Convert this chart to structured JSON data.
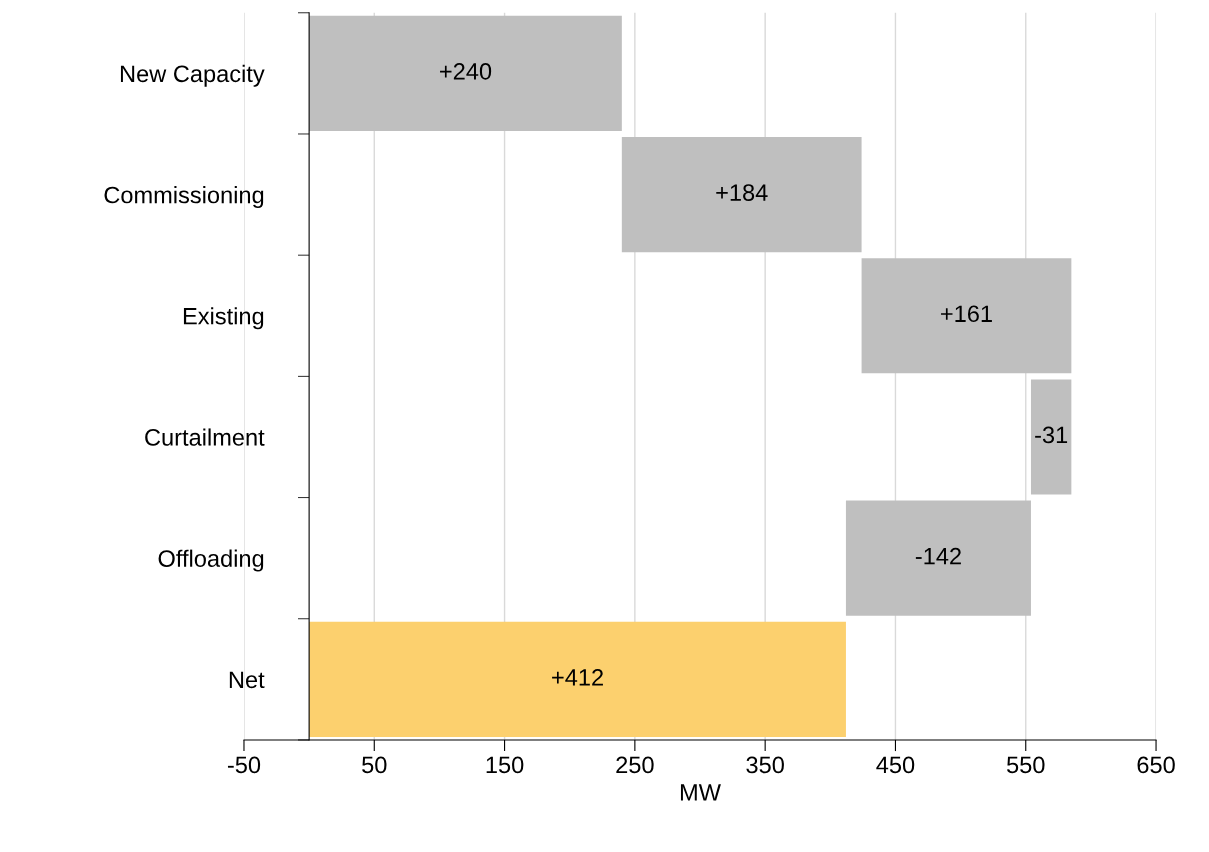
{
  "chart_data": {
    "type": "bar",
    "orientation": "horizontal",
    "xlabel": "MW",
    "categories": [
      "New Capacity",
      "Commissioning",
      "Existing",
      "Curtailment",
      "Offloading",
      "Net"
    ],
    "values": [
      240,
      184,
      161,
      -31,
      -142,
      412
    ],
    "base": [
      0,
      240,
      424,
      585,
      554,
      0
    ],
    "colors": [
      "#bfbfbf",
      "#bfbfbf",
      "#bfbfbf",
      "#bfbfbf",
      "#bfbfbf",
      "#fcd06e"
    ],
    "value_labels": [
      "+240",
      "+184",
      "+161",
      "-31",
      "-142",
      "+412"
    ],
    "xlim": [
      -50,
      650
    ],
    "xticks": [
      -50,
      50,
      150,
      250,
      350,
      450,
      550,
      650
    ],
    "grid": "x"
  }
}
